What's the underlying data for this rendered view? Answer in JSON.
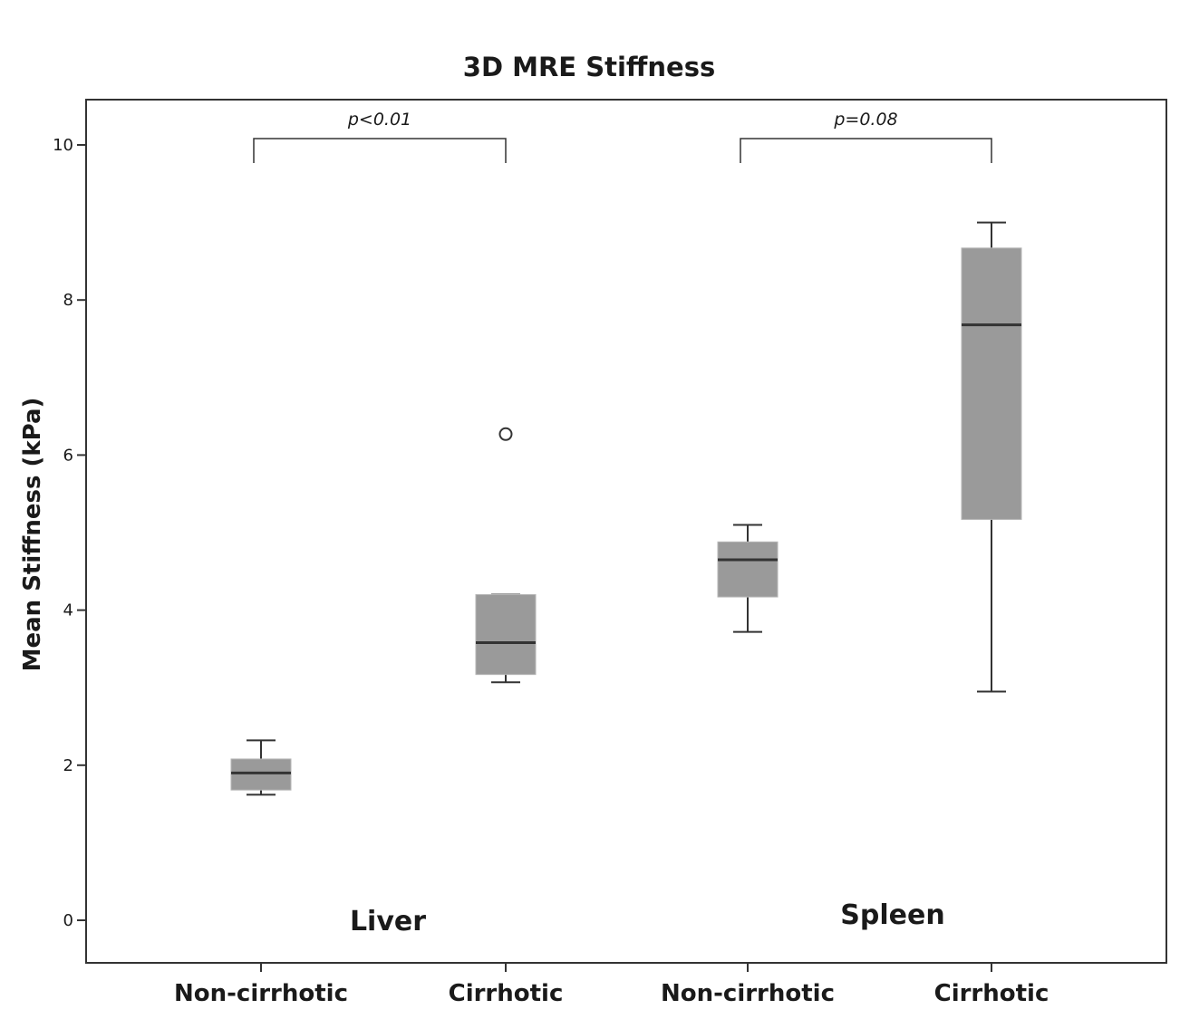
{
  "chart_data": {
    "type": "box",
    "title": "3D MRE Stiffness",
    "ylabel": "Mean Stiffness (kPa)",
    "xlabel": "",
    "ylim": [
      -0.7,
      10.55
    ],
    "yticks": [
      0,
      2,
      4,
      6,
      8,
      10
    ],
    "grid": false,
    "colors": {
      "box_fill": "#9a9a9a",
      "line": "#333333",
      "frame": "#333333"
    },
    "categories": [
      "Non-cirrhotic",
      "Cirrhotic",
      "Non-cirrhotic",
      "Cirrhotic"
    ],
    "groups": [
      {
        "label": "Liver",
        "categories": [
          0,
          1
        ]
      },
      {
        "label": "Spleen",
        "categories": [
          2,
          3
        ]
      }
    ],
    "boxes": [
      {
        "category": "Non-cirrhotic",
        "group": "Liver",
        "min": 1.62,
        "q1": 1.68,
        "median": 1.9,
        "q3": 2.08,
        "max": 2.32,
        "outliers": []
      },
      {
        "category": "Cirrhotic",
        "group": "Liver",
        "min": 3.07,
        "q1": 3.17,
        "median": 3.58,
        "q3": 4.2,
        "max": 4.2,
        "outliers": [
          6.27
        ]
      },
      {
        "category": "Non-cirrhotic",
        "group": "Spleen",
        "min": 3.72,
        "q1": 4.17,
        "median": 4.65,
        "q3": 4.88,
        "max": 5.1,
        "outliers": []
      },
      {
        "category": "Cirrhotic",
        "group": "Spleen",
        "min": 2.95,
        "q1": 5.17,
        "median": 7.68,
        "q3": 8.67,
        "max": 9.0,
        "outliers": []
      }
    ],
    "annotations": [
      {
        "text": "p<0.01",
        "from": 0,
        "to": 1
      },
      {
        "text": "p=0.08",
        "from": 2,
        "to": 3
      }
    ]
  }
}
